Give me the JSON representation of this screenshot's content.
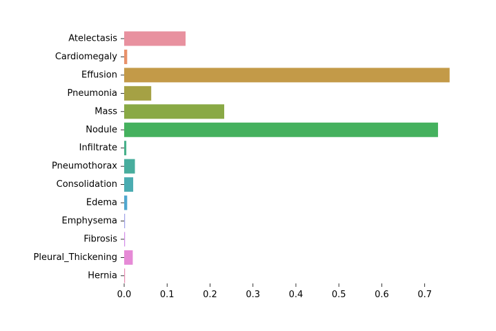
{
  "chart_data": {
    "type": "bar",
    "orientation": "horizontal",
    "title": "",
    "xlabel": "",
    "ylabel": "",
    "categories": [
      "Atelectasis",
      "Cardiomegaly",
      "Effusion",
      "Pneumonia",
      "Mass",
      "Nodule",
      "Infiltrate",
      "Pneumothorax",
      "Consolidation",
      "Edema",
      "Emphysema",
      "Fibrosis",
      "Pleural_Thickening",
      "Hernia"
    ],
    "values": [
      0.143,
      0.007,
      0.758,
      0.063,
      0.233,
      0.731,
      0.005,
      0.025,
      0.021,
      0.007,
      0.002,
      0.002,
      0.02,
      0.002
    ],
    "colors": [
      "#e8919f",
      "#e8916a",
      "#c39a48",
      "#a5a144",
      "#89a945",
      "#45b15e",
      "#47b08a",
      "#48ad9d",
      "#4bacb1",
      "#50a7cf",
      "#a2a4e8",
      "#d48ee8",
      "#e68ad6",
      "#e88fb4"
    ],
    "xlim": [
      0,
      0.76
    ],
    "xticks": [
      0.0,
      0.1,
      0.2,
      0.3,
      0.4,
      0.5,
      0.6,
      0.7
    ],
    "xtick_labels": [
      "0.0",
      "0.1",
      "0.2",
      "0.3",
      "0.4",
      "0.5",
      "0.6",
      "0.7"
    ],
    "grid": false,
    "legend": "none"
  }
}
